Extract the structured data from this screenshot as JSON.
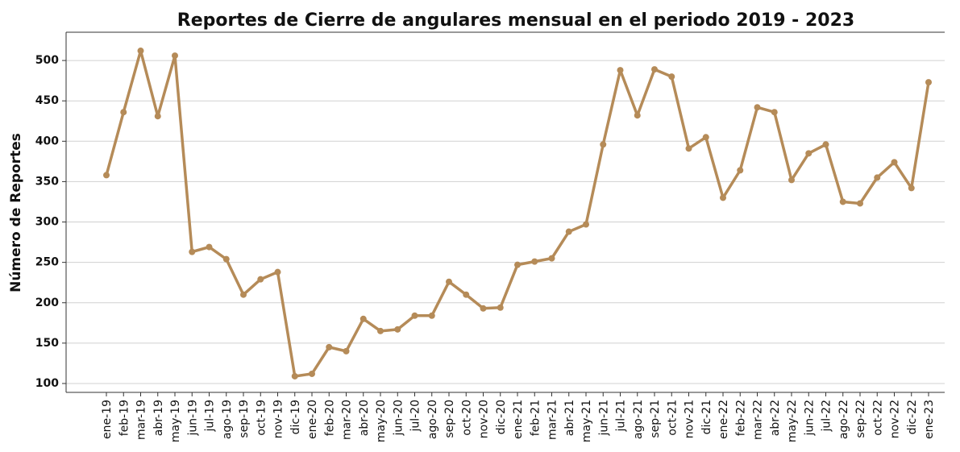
{
  "chart_data": {
    "type": "line",
    "title": "Reportes de Cierre de angulares mensual en el periodo 2019 - 2023",
    "y_label": "Número de Reportes",
    "categories": [
      "ene-19",
      "feb-19",
      "mar-19",
      "abr-19",
      "may-19",
      "jun-19",
      "jul-19",
      "ago-19",
      "sep-19",
      "oct-19",
      "nov-19",
      "dic-19",
      "ene-20",
      "feb-20",
      "mar-20",
      "abr-20",
      "may-20",
      "jun-20",
      "jul-20",
      "ago-20",
      "sep-20",
      "oct-20",
      "nov-20",
      "dic-20",
      "ene-21",
      "feb-21",
      "mar-21",
      "abr-21",
      "may-21",
      "jun-21",
      "jul-21",
      "ago-21",
      "sep-21",
      "oct-21",
      "nov-21",
      "dic-21",
      "ene-22",
      "feb-22",
      "mar-22",
      "abr-22",
      "may-22",
      "jun-22",
      "jul-22",
      "ago-22",
      "sep-22",
      "oct-22",
      "nov-22",
      "dic-22",
      "ene-23"
    ],
    "values": [
      358,
      436,
      512,
      431,
      506,
      263,
      269,
      254,
      210,
      229,
      238,
      109,
      112,
      145,
      140,
      180,
      165,
      167,
      184,
      184,
      226,
      210,
      193,
      194,
      247,
      251,
      255,
      288,
      297,
      396,
      488,
      432,
      489,
      480,
      391,
      405,
      330,
      364,
      442,
      436,
      352,
      385,
      396,
      325,
      323,
      355,
      374,
      342,
      473
    ],
    "color": "#b58b58",
    "ylim": [
      89,
      535
    ],
    "yticks": [
      100,
      150,
      200,
      250,
      300,
      350,
      400,
      450,
      500
    ],
    "grid": true
  }
}
